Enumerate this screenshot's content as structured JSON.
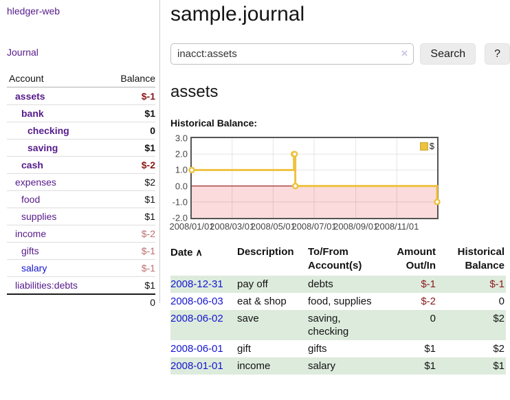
{
  "colors": {
    "link_purple": "#551a8b",
    "link_blue": "#1414d2",
    "negative_strong": "#8b1717",
    "negative_muted": "#bd6e6e",
    "stripe_green": "#ddebdd",
    "series_gold": "#edc240"
  },
  "sidebar": {
    "brand": "hledger-web",
    "journal_link": "Journal",
    "accounts": {
      "header_account": "Account",
      "header_balance": "Balance",
      "rows": [
        {
          "name": "assets",
          "balance": "$-1"
        },
        {
          "name": "bank",
          "balance": "$1"
        },
        {
          "name": "checking",
          "balance": "0"
        },
        {
          "name": "saving",
          "balance": "$1"
        },
        {
          "name": "cash",
          "balance": "$-2"
        },
        {
          "name": "expenses",
          "balance": "$2"
        },
        {
          "name": "food",
          "balance": "$1"
        },
        {
          "name": "supplies",
          "balance": "$1"
        },
        {
          "name": "income",
          "balance": "$-2"
        },
        {
          "name": "gifts",
          "balance": "$-1"
        },
        {
          "name": "salary",
          "balance": "$-1"
        },
        {
          "name": "liabilities:debts",
          "balance": "$1"
        }
      ],
      "total": "0"
    }
  },
  "header": {
    "title": "sample.journal"
  },
  "search": {
    "value": "inacct:assets",
    "clear_icon": "×",
    "search_button": "Search",
    "help_button": "?"
  },
  "account_page": {
    "heading": "assets",
    "chart_title": "Historical Balance:"
  },
  "chart_data": {
    "type": "line",
    "step": true,
    "x_type": "date",
    "title": "Historical Balance",
    "xlim": [
      "2008-01-01",
      "2008-12-31"
    ],
    "ylim": [
      -2,
      3
    ],
    "y_ticks": [
      3.0,
      2.0,
      1.0,
      0.0,
      -1.0,
      -2.0
    ],
    "x_ticks": [
      {
        "date": "2008-01-01",
        "label": "2008/01/01"
      },
      {
        "date": "2008-03-01",
        "label": "2008/03/01"
      },
      {
        "date": "2008-05-01",
        "label": "2008/05/01"
      },
      {
        "date": "2008-07-01",
        "label": "2008/07/01"
      },
      {
        "date": "2008-09-01",
        "label": "2008/09/01"
      },
      {
        "date": "2008-11-01",
        "label": "2008/11/01"
      }
    ],
    "series": [
      {
        "name": "$",
        "color": "#edc240",
        "points": [
          [
            "2008-01-01",
            1
          ],
          [
            "2008-06-01",
            2
          ],
          [
            "2008-06-02",
            2
          ],
          [
            "2008-06-03",
            0
          ],
          [
            "2008-12-31",
            -1
          ]
        ]
      }
    ],
    "legend_position": "top-right",
    "grid": true,
    "negative_region_color": "#fbdbdb",
    "zero_line_color": "#8b0000",
    "grid_color": "rgba(0,0,0,0.10)",
    "border_color": "#545454"
  },
  "transactions": {
    "headers": {
      "date": "Date",
      "sort_icon": "∧",
      "description": "Description",
      "accounts": "To/From Account(s)",
      "amount": "Amount Out/In",
      "balance": "Historical Balance"
    },
    "rows": [
      {
        "date": "2008-12-31",
        "description": "pay off",
        "accounts": "debts",
        "amount": "$-1",
        "balance": "$-1"
      },
      {
        "date": "2008-06-03",
        "description": "eat & shop",
        "accounts": "food, supplies",
        "amount": "$-2",
        "balance": "0"
      },
      {
        "date": "2008-06-02",
        "description": "save",
        "accounts": "saving, checking",
        "amount": "0",
        "balance": "$2"
      },
      {
        "date": "2008-06-01",
        "description": "gift",
        "accounts": "gifts",
        "amount": "$1",
        "balance": "$2"
      },
      {
        "date": "2008-01-01",
        "description": "income",
        "accounts": "salary",
        "amount": "$1",
        "balance": "$1"
      }
    ]
  }
}
